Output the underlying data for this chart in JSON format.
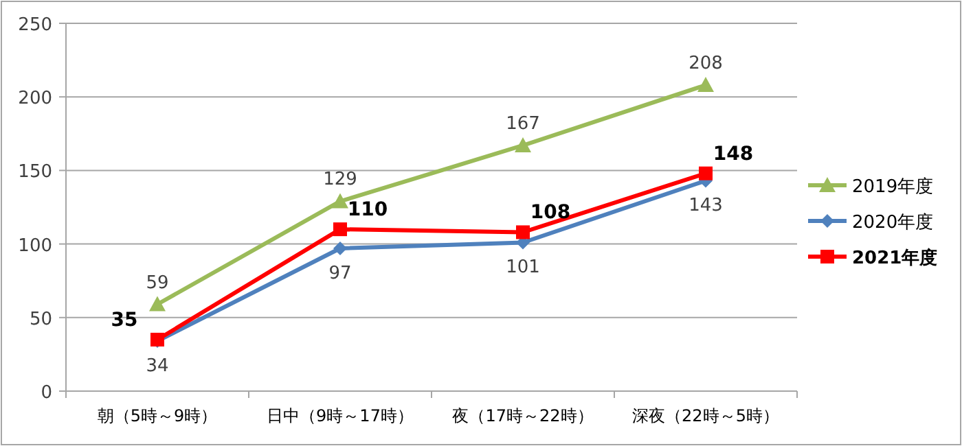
{
  "chart_data": {
    "type": "line",
    "categories": [
      "朝（5時～9時）",
      "日中（9時～17時）",
      "夜（17時～22時）",
      "深夜（22時～5時）"
    ],
    "series": [
      {
        "name": "2019年度",
        "color": "#9bbb59",
        "marker": "triangle",
        "values": [
          59,
          129,
          167,
          208
        ]
      },
      {
        "name": "2020年度",
        "color": "#4f81bd",
        "marker": "diamond",
        "values": [
          34,
          97,
          101,
          143
        ]
      },
      {
        "name": "2021年度",
        "color": "#ff0000",
        "marker": "square",
        "values": [
          35,
          110,
          108,
          148
        ]
      }
    ],
    "ylim": [
      0,
      250
    ],
    "yticks": [
      0,
      50,
      100,
      150,
      200,
      250
    ],
    "grid": "y",
    "legend": "right",
    "data_labels": true
  }
}
